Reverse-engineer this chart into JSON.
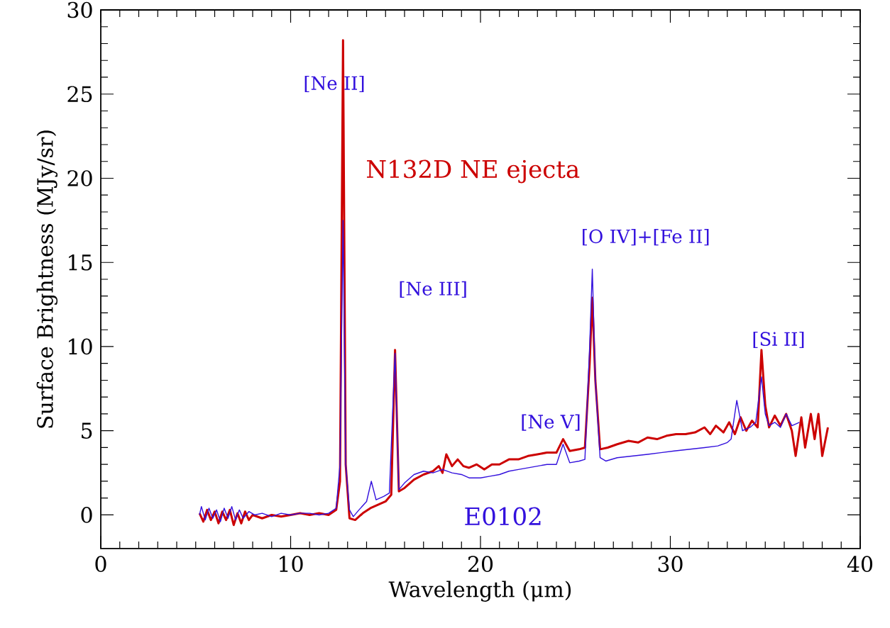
{
  "chart_data": {
    "type": "line",
    "xlabel": "Wavelength (μm)",
    "ylabel": "Surface Brightness (MJy/sr)",
    "xlim": [
      0,
      40
    ],
    "ylim": [
      -2,
      30
    ],
    "xticks": [
      0,
      10,
      20,
      30,
      40
    ],
    "yticks": [
      0,
      5,
      10,
      15,
      20,
      25,
      30
    ],
    "grid": false,
    "legend": false,
    "marker": "none",
    "line_style": "solid",
    "series": [
      {
        "name": "N132D NE ejecta",
        "color": "#cc0000",
        "x": [
          5.2,
          5.4,
          5.6,
          5.8,
          6.0,
          6.2,
          6.4,
          6.6,
          6.8,
          7.0,
          7.2,
          7.4,
          7.6,
          7.8,
          8.0,
          8.5,
          9,
          9.5,
          10,
          10.5,
          11,
          11.5,
          12,
          12.4,
          12.6,
          12.76,
          12.9,
          13.1,
          13.4,
          13.8,
          14.2,
          14.6,
          15.0,
          15.3,
          15.5,
          15.7,
          16.0,
          16.5,
          17.0,
          17.5,
          17.8,
          18.0,
          18.2,
          18.5,
          18.8,
          19.1,
          19.4,
          19.8,
          20.2,
          20.6,
          21,
          21.5,
          22,
          22.5,
          23,
          23.5,
          24.0,
          24.35,
          24.7,
          25.2,
          25.5,
          25.75,
          25.89,
          26.05,
          26.3,
          26.7,
          27.2,
          27.8,
          28.3,
          28.8,
          29.3,
          29.8,
          30.3,
          30.8,
          31.3,
          31.8,
          32.1,
          32.4,
          32.8,
          33.1,
          33.4,
          33.7,
          34.0,
          34.3,
          34.6,
          34.8,
          35.0,
          35.2,
          35.5,
          35.8,
          36.1,
          36.4,
          36.6,
          36.9,
          37.1,
          37.4,
          37.6,
          37.8,
          38.0,
          38.3
        ],
        "values": [
          0.1,
          -0.4,
          0.3,
          -0.3,
          0.2,
          -0.5,
          0.2,
          -0.3,
          0.3,
          -0.6,
          0.1,
          -0.5,
          0.2,
          -0.3,
          0.0,
          -0.2,
          0.0,
          -0.1,
          0.0,
          0.1,
          0.0,
          0.1,
          0.0,
          0.3,
          2,
          28.2,
          3,
          -0.2,
          -0.3,
          0.1,
          0.4,
          0.6,
          0.8,
          1.2,
          9.8,
          1.4,
          1.6,
          2.1,
          2.4,
          2.6,
          2.9,
          2.5,
          3.6,
          2.9,
          3.3,
          2.9,
          2.8,
          3.0,
          2.7,
          3.0,
          3.0,
          3.3,
          3.3,
          3.5,
          3.6,
          3.7,
          3.7,
          4.5,
          3.8,
          3.9,
          4.0,
          9,
          12.9,
          8,
          3.9,
          4.0,
          4.2,
          4.4,
          4.3,
          4.6,
          4.5,
          4.7,
          4.8,
          4.8,
          4.9,
          5.2,
          4.8,
          5.3,
          4.9,
          5.5,
          4.8,
          5.8,
          5.0,
          5.6,
          5.2,
          9.8,
          6.5,
          5.2,
          5.9,
          5.3,
          6.0,
          5.0,
          3.5,
          5.8,
          4.0,
          6.0,
          4.5,
          6.0,
          3.5,
          5.2
        ]
      },
      {
        "name": "E0102",
        "color": "#3311dd",
        "x": [
          5.2,
          5.3,
          5.5,
          5.7,
          5.9,
          6.1,
          6.3,
          6.5,
          6.7,
          6.9,
          7.1,
          7.3,
          7.5,
          7.8,
          8.1,
          8.5,
          9,
          9.5,
          10,
          10.5,
          11,
          11.5,
          12,
          12.4,
          12.6,
          12.76,
          12.9,
          13.1,
          13.3,
          13.6,
          14.0,
          14.25,
          14.5,
          14.9,
          15.2,
          15.5,
          15.7,
          16.0,
          16.5,
          17.0,
          17.5,
          18.0,
          18.5,
          19.0,
          19.4,
          20,
          20.5,
          21,
          21.5,
          22,
          22.5,
          23,
          23.5,
          24.0,
          24.35,
          24.7,
          25.2,
          25.5,
          25.75,
          25.89,
          26.05,
          26.3,
          26.6,
          27.2,
          28,
          28.8,
          29.5,
          30.2,
          31,
          31.8,
          32.5,
          33.0,
          33.2,
          33.5,
          33.8,
          34.2,
          34.5,
          34.8,
          35.0,
          35.2,
          35.5,
          35.8,
          36.1,
          36.4,
          36.8
        ],
        "values": [
          0.0,
          0.5,
          -0.3,
          0.4,
          -0.2,
          0.3,
          -0.4,
          0.4,
          -0.2,
          0.5,
          -0.3,
          0.3,
          -0.2,
          0.2,
          0.0,
          0.1,
          -0.1,
          0.1,
          0.0,
          0.1,
          0.1,
          0.0,
          0.1,
          0.4,
          3,
          17.5,
          3,
          0.3,
          -0.1,
          0.3,
          0.8,
          2.0,
          0.9,
          1.1,
          1.3,
          9.6,
          1.5,
          1.9,
          2.4,
          2.6,
          2.5,
          2.7,
          2.5,
          2.4,
          2.2,
          2.2,
          2.3,
          2.4,
          2.6,
          2.7,
          2.8,
          2.9,
          3.0,
          3.0,
          4.2,
          3.1,
          3.2,
          3.3,
          10,
          14.6,
          8,
          3.4,
          3.2,
          3.4,
          3.5,
          3.6,
          3.7,
          3.8,
          3.9,
          4.0,
          4.1,
          4.3,
          4.5,
          6.8,
          5.0,
          5.2,
          5.5,
          8.2,
          6.0,
          5.3,
          5.5,
          5.2,
          6.0,
          5.3,
          5.5
        ]
      }
    ],
    "annotations": [
      "[Ne II]",
      "[Ne III]",
      "[O IV]+[Fe II]",
      "[Ne V]",
      "[Si II]"
    ]
  }
}
